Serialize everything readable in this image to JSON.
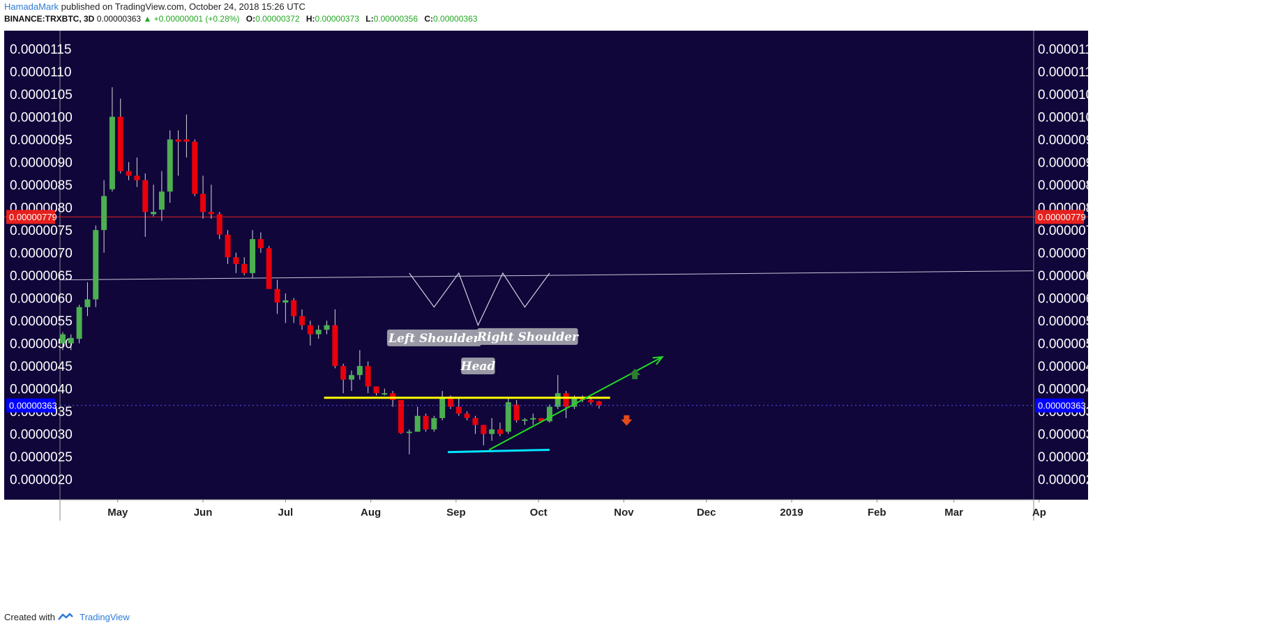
{
  "header": {
    "author": "HamadaMark",
    "published": "published on TradingView.com, October 24, 2018 15:26 UTC",
    "symbol": "BINANCE:TRXBTC, 3D",
    "last": "0.00000363",
    "change": "▲ +0.00000001 (+0.28%)",
    "o_label": "O:",
    "o_value": "0.00000372",
    "h_label": "H:",
    "h_value": "0.00000373",
    "l_label": "L:",
    "l_value": "0.00000356",
    "c_label": "C:",
    "c_value": "0.00000363"
  },
  "footer": {
    "created_with": "Created with",
    "brand": "TradingView"
  },
  "colors": {
    "background": "#10063a",
    "up": "#4caf50",
    "down": "#e8000b",
    "hline_red": "#e5201d",
    "resistance": "#ffff00",
    "support": "#00e5ff",
    "trend": "#22dd22",
    "price_badge": "#0000ff",
    "arrow_up": "#2e7d32",
    "arrow_down": "#e64a19"
  },
  "chart_data": {
    "type": "candlestick",
    "y_ticks": [
      "0.0000115",
      "0.0000110",
      "0.0000105",
      "0.0000100",
      "0.0000095",
      "0.0000090",
      "0.0000085",
      "0.0000080",
      "0.0000075",
      "0.0000070",
      "0.0000065",
      "0.0000060",
      "0.0000055",
      "0.0000050",
      "0.0000045",
      "0.0000040",
      "0.0000035",
      "0.0000030",
      "0.0000025",
      "0.0000020"
    ],
    "y_tick_values": [
      11.5,
      11,
      10.5,
      10,
      9.5,
      9,
      8.5,
      8,
      7.5,
      7,
      6.5,
      6,
      5.5,
      5,
      4.5,
      4,
      3.5,
      3,
      2.5,
      2
    ],
    "y_unit_note": "values ×1e-6 BTC",
    "ylim": [
      1.55,
      11.9
    ],
    "x_labels": [
      "May",
      "Jun",
      "Jul",
      "Aug",
      "Sep",
      "Oct",
      "Nov",
      "Dec",
      "2019",
      "Feb",
      "Mar",
      "Ap"
    ],
    "x_label_days": [
      0,
      31,
      61,
      92,
      123,
      153,
      184,
      214,
      245,
      276,
      304,
      335
    ],
    "xlim_days": [
      -21,
      333
    ],
    "price_labels": {
      "red_line": "0.00000779",
      "current": "0.00000363"
    },
    "red_line_value": 7.79,
    "current_value": 3.63,
    "candles": [
      {
        "d": -20,
        "o": 5.0,
        "h": 5.25,
        "l": 4.85,
        "c": 5.2
      },
      {
        "d": -17,
        "o": 5.0,
        "h": 5.2,
        "l": 4.85,
        "c": 5.12
      },
      {
        "d": -14,
        "o": 5.1,
        "h": 5.85,
        "l": 5.0,
        "c": 5.8
      },
      {
        "d": -11,
        "o": 5.8,
        "h": 6.35,
        "l": 5.6,
        "c": 5.97
      },
      {
        "d": -8,
        "o": 5.97,
        "h": 7.6,
        "l": 5.8,
        "c": 7.5
      },
      {
        "d": -5,
        "o": 7.5,
        "h": 8.6,
        "l": 7.0,
        "c": 8.25
      },
      {
        "d": -2,
        "o": 8.4,
        "h": 10.65,
        "l": 8.35,
        "c": 10.0
      },
      {
        "d": 1,
        "o": 10.0,
        "h": 10.4,
        "l": 8.75,
        "c": 8.8
      },
      {
        "d": 4,
        "o": 8.8,
        "h": 9.0,
        "l": 8.6,
        "c": 8.7
      },
      {
        "d": 7,
        "o": 8.7,
        "h": 9.1,
        "l": 8.45,
        "c": 8.6
      },
      {
        "d": 10,
        "o": 8.6,
        "h": 8.75,
        "l": 7.35,
        "c": 7.9
      },
      {
        "d": 13,
        "o": 7.85,
        "h": 8.5,
        "l": 7.8,
        "c": 7.9
      },
      {
        "d": 16,
        "o": 7.95,
        "h": 8.8,
        "l": 7.7,
        "c": 8.35
      },
      {
        "d": 19,
        "o": 8.35,
        "h": 9.7,
        "l": 8.1,
        "c": 9.5
      },
      {
        "d": 22,
        "o": 9.5,
        "h": 9.7,
        "l": 8.7,
        "c": 9.45
      },
      {
        "d": 25,
        "o": 9.5,
        "h": 10.05,
        "l": 9.1,
        "c": 9.45
      },
      {
        "d": 28,
        "o": 9.45,
        "h": 9.5,
        "l": 8.25,
        "c": 8.3
      },
      {
        "d": 31,
        "o": 8.3,
        "h": 8.7,
        "l": 7.75,
        "c": 7.9
      },
      {
        "d": 34,
        "o": 7.9,
        "h": 8.5,
        "l": 7.75,
        "c": 7.85
      },
      {
        "d": 37,
        "o": 7.85,
        "h": 7.9,
        "l": 7.3,
        "c": 7.4
      },
      {
        "d": 40,
        "o": 7.4,
        "h": 7.5,
        "l": 6.75,
        "c": 6.9
      },
      {
        "d": 43,
        "o": 6.9,
        "h": 7.0,
        "l": 6.55,
        "c": 6.75
      },
      {
        "d": 46,
        "o": 6.75,
        "h": 6.9,
        "l": 6.5,
        "c": 6.55
      },
      {
        "d": 49,
        "o": 6.55,
        "h": 7.5,
        "l": 6.45,
        "c": 7.3
      },
      {
        "d": 52,
        "o": 7.3,
        "h": 7.45,
        "l": 7.0,
        "c": 7.1
      },
      {
        "d": 55,
        "o": 7.1,
        "h": 7.15,
        "l": 6.2,
        "c": 6.2
      },
      {
        "d": 58,
        "o": 6.2,
        "h": 6.4,
        "l": 5.65,
        "c": 5.9
      },
      {
        "d": 61,
        "o": 5.9,
        "h": 6.1,
        "l": 5.45,
        "c": 5.95
      },
      {
        "d": 64,
        "o": 5.95,
        "h": 6.0,
        "l": 5.45,
        "c": 5.6
      },
      {
        "d": 67,
        "o": 5.6,
        "h": 5.75,
        "l": 5.3,
        "c": 5.4
      },
      {
        "d": 70,
        "o": 5.4,
        "h": 5.5,
        "l": 4.95,
        "c": 5.2
      },
      {
        "d": 73,
        "o": 5.2,
        "h": 5.4,
        "l": 5.1,
        "c": 5.3
      },
      {
        "d": 76,
        "o": 5.3,
        "h": 5.5,
        "l": 5.2,
        "c": 5.4
      },
      {
        "d": 79,
        "o": 5.4,
        "h": 5.75,
        "l": 4.45,
        "c": 4.5
      },
      {
        "d": 82,
        "o": 4.5,
        "h": 4.55,
        "l": 3.9,
        "c": 4.2
      },
      {
        "d": 85,
        "o": 4.2,
        "h": 4.4,
        "l": 3.95,
        "c": 4.3
      },
      {
        "d": 88,
        "o": 4.3,
        "h": 4.85,
        "l": 4.2,
        "c": 4.5
      },
      {
        "d": 91,
        "o": 4.5,
        "h": 4.6,
        "l": 3.9,
        "c": 4.05
      },
      {
        "d": 94,
        "o": 4.05,
        "h": 4.05,
        "l": 3.85,
        "c": 3.9
      },
      {
        "d": 97,
        "o": 3.9,
        "h": 4.0,
        "l": 3.85,
        "c": 3.9
      },
      {
        "d": 100,
        "o": 3.9,
        "h": 3.95,
        "l": 3.6,
        "c": 3.75
      },
      {
        "d": 103,
        "o": 3.75,
        "h": 3.75,
        "l": 3.0,
        "c": 3.02
      },
      {
        "d": 106,
        "o": 3.05,
        "h": 3.1,
        "l": 2.55,
        "c": 3.05
      },
      {
        "d": 109,
        "o": 3.05,
        "h": 3.6,
        "l": 3.05,
        "c": 3.4
      },
      {
        "d": 112,
        "o": 3.4,
        "h": 3.45,
        "l": 3.05,
        "c": 3.1
      },
      {
        "d": 115,
        "o": 3.1,
        "h": 3.4,
        "l": 3.05,
        "c": 3.35
      },
      {
        "d": 118,
        "o": 3.35,
        "h": 3.95,
        "l": 3.3,
        "c": 3.8
      },
      {
        "d": 121,
        "o": 3.8,
        "h": 3.85,
        "l": 3.55,
        "c": 3.6
      },
      {
        "d": 124,
        "o": 3.6,
        "h": 3.8,
        "l": 3.4,
        "c": 3.45
      },
      {
        "d": 127,
        "o": 3.45,
        "h": 3.5,
        "l": 3.3,
        "c": 3.35
      },
      {
        "d": 130,
        "o": 3.35,
        "h": 3.4,
        "l": 3.0,
        "c": 3.2
      },
      {
        "d": 133,
        "o": 3.2,
        "h": 3.2,
        "l": 2.75,
        "c": 3.0
      },
      {
        "d": 136,
        "o": 3.0,
        "h": 3.35,
        "l": 2.85,
        "c": 3.1
      },
      {
        "d": 139,
        "o": 3.1,
        "h": 3.25,
        "l": 2.95,
        "c": 3.0
      },
      {
        "d": 142,
        "o": 3.05,
        "h": 3.8,
        "l": 3.0,
        "c": 3.7
      },
      {
        "d": 145,
        "o": 3.65,
        "h": 3.75,
        "l": 3.25,
        "c": 3.3
      },
      {
        "d": 148,
        "o": 3.3,
        "h": 3.35,
        "l": 3.2,
        "c": 3.32
      },
      {
        "d": 151,
        "o": 3.32,
        "h": 3.45,
        "l": 3.2,
        "c": 3.35
      },
      {
        "d": 154,
        "o": 3.35,
        "h": 3.35,
        "l": 3.25,
        "c": 3.28
      },
      {
        "d": 157,
        "o": 3.28,
        "h": 3.65,
        "l": 3.25,
        "c": 3.6
      },
      {
        "d": 160,
        "o": 3.6,
        "h": 4.3,
        "l": 3.55,
        "c": 3.9
      },
      {
        "d": 163,
        "o": 3.9,
        "h": 3.95,
        "l": 3.35,
        "c": 3.6
      },
      {
        "d": 166,
        "o": 3.6,
        "h": 3.85,
        "l": 3.55,
        "c": 3.8
      },
      {
        "d": 169,
        "o": 3.8,
        "h": 3.85,
        "l": 3.7,
        "c": 3.75
      },
      {
        "d": 172,
        "o": 3.75,
        "h": 3.8,
        "l": 3.65,
        "c": 3.7
      },
      {
        "d": 175,
        "o": 3.72,
        "h": 3.73,
        "l": 3.56,
        "c": 3.63
      }
    ],
    "resistance": {
      "d1": 75,
      "d2": 179,
      "value": 3.8
    },
    "support": {
      "d1": 120,
      "d2": 157,
      "v1": 2.6,
      "v2": 2.65
    },
    "neckline": {
      "d1": -21,
      "v1": 6.4,
      "d2": 333,
      "v2": 6.6
    },
    "trend_arrow": {
      "d1": 135,
      "v1": 2.65,
      "d2": 198,
      "v2": 4.7
    },
    "pattern_points": [
      [
        106,
        6.55
      ],
      [
        115,
        5.8
      ],
      [
        124,
        6.55
      ],
      [
        131,
        5.4
      ],
      [
        140,
        6.55
      ],
      [
        148,
        5.8
      ],
      [
        157,
        6.55
      ]
    ],
    "arrow_up": {
      "d": 188,
      "v": 4.3
    },
    "arrow_down": {
      "d": 185,
      "v": 3.32
    },
    "annotations": [
      {
        "text": "Left Shoulder",
        "d": 115,
        "v": 5.12
      },
      {
        "text": "Head",
        "d": 131,
        "v": 4.5
      },
      {
        "text": "Right Shoulder",
        "d": 149,
        "v": 5.15
      }
    ]
  }
}
